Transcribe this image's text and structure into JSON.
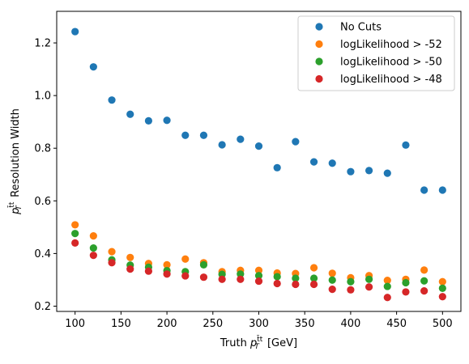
{
  "chart_data": {
    "type": "scatter",
    "xlabel": "Truth $p_T^{t\\bar{t}}$ [GeV]",
    "ylabel": "$p_T^{t\\bar{t}}$ Resolution Width",
    "xlim": [
      80,
      520
    ],
    "ylim": [
      0.18,
      1.32
    ],
    "x_ticks": [
      100,
      150,
      200,
      250,
      300,
      350,
      400,
      450,
      500
    ],
    "y_ticks": [
      0.2,
      0.4,
      0.6,
      0.8,
      1.0,
      1.2
    ],
    "x_tick_labels": [
      "100",
      "150",
      "200",
      "250",
      "300",
      "350",
      "400",
      "450",
      "500"
    ],
    "y_tick_labels": [
      "0.2",
      "0.4",
      "0.6",
      "0.8",
      "1.0",
      "1.2"
    ],
    "grid": false,
    "legend_position": "top-right",
    "x": [
      100,
      120,
      140,
      160,
      180,
      200,
      220,
      240,
      260,
      280,
      300,
      320,
      340,
      360,
      380,
      400,
      420,
      440,
      460,
      480,
      500
    ],
    "series": [
      {
        "name": "No Cuts",
        "color": "#1f77b4",
        "values": [
          1.243,
          1.109,
          0.983,
          0.929,
          0.904,
          0.906,
          0.849,
          0.849,
          0.813,
          0.834,
          0.808,
          0.726,
          0.825,
          0.748,
          0.743,
          0.711,
          0.715,
          0.705,
          0.812,
          0.641,
          0.641
        ]
      },
      {
        "name": "logLikelihood > -52",
        "color": "#ff7f0e",
        "values": [
          0.509,
          0.467,
          0.407,
          0.385,
          0.362,
          0.357,
          0.379,
          0.365,
          0.331,
          0.336,
          0.336,
          0.326,
          0.324,
          0.346,
          0.325,
          0.308,
          0.316,
          0.298,
          0.302,
          0.337,
          0.293
        ]
      },
      {
        "name": "logLikelihood > -50",
        "color": "#2ca02c",
        "values": [
          0.476,
          0.421,
          0.376,
          0.356,
          0.348,
          0.335,
          0.331,
          0.357,
          0.321,
          0.322,
          0.316,
          0.312,
          0.306,
          0.306,
          0.299,
          0.293,
          0.302,
          0.275,
          0.289,
          0.296,
          0.268
        ]
      },
      {
        "name": "logLikelihood > -48",
        "color": "#d62728",
        "values": [
          0.44,
          0.393,
          0.365,
          0.341,
          0.333,
          0.322,
          0.315,
          0.31,
          0.302,
          0.302,
          0.295,
          0.286,
          0.283,
          0.283,
          0.264,
          0.262,
          0.273,
          0.233,
          0.254,
          0.258,
          0.236
        ]
      }
    ]
  }
}
